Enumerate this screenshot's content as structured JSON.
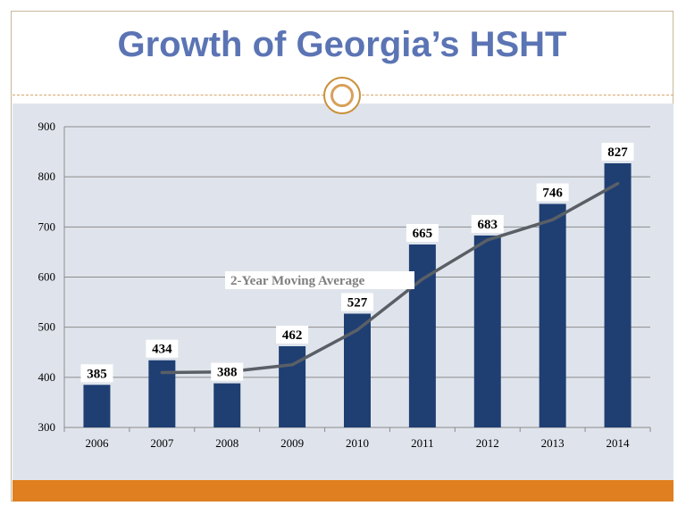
{
  "slide": {
    "title": "Growth of Georgia’s HSHT",
    "accent_color": "#e07f1f",
    "title_color": "#5b74b4"
  },
  "chart_data": {
    "type": "bar",
    "categories": [
      "2006",
      "2007",
      "2008",
      "2009",
      "2010",
      "2011",
      "2012",
      "2013",
      "2014"
    ],
    "values": [
      385,
      434,
      388,
      462,
      527,
      665,
      683,
      746,
      827
    ],
    "data_labels": [
      "385",
      "434",
      "388",
      "462",
      "527",
      "665",
      "683",
      "746",
      "827"
    ],
    "ylim": [
      300,
      900
    ],
    "yticks": [
      300,
      400,
      500,
      600,
      700,
      800,
      900
    ],
    "grid": true,
    "bar_color": "#1f3f73",
    "trendline": {
      "label": "2-Year Moving Average",
      "start_index": 1,
      "values": [
        409.5,
        411,
        425,
        494.5,
        596,
        674,
        714.5,
        786.5
      ],
      "color": "#5a5f66"
    },
    "title": "",
    "xlabel": "",
    "ylabel": ""
  }
}
